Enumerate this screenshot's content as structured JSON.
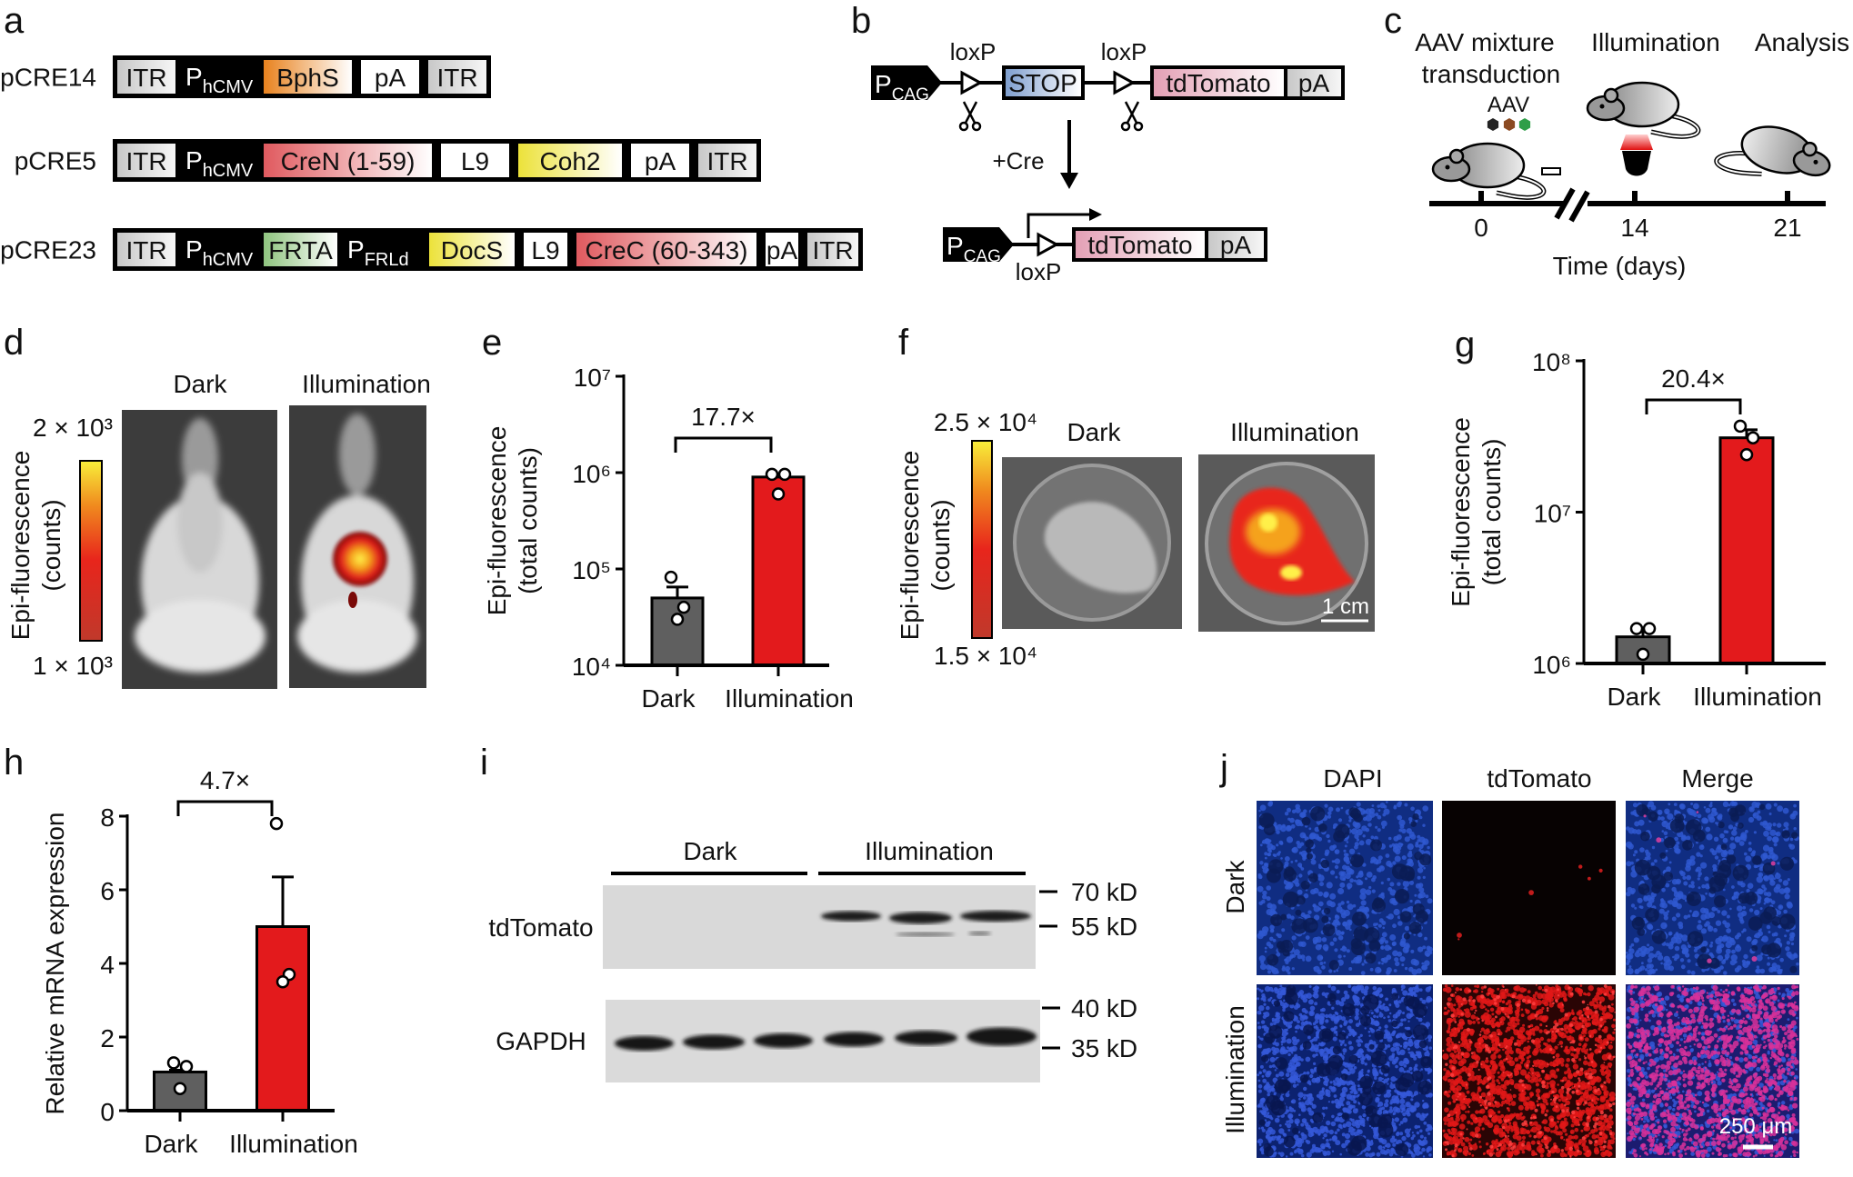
{
  "panel_a": {
    "label": "a",
    "constructs": [
      {
        "name": "pCRE14",
        "segments": [
          {
            "text": "ITR",
            "kind": "itr"
          },
          {
            "text": "P",
            "sub": "hCMV",
            "kind": "promoter"
          },
          {
            "text": "BphS",
            "kind": "gene",
            "color": "#e8821e"
          },
          {
            "text": "pA",
            "kind": "plain"
          },
          {
            "text": "ITR",
            "kind": "itr"
          }
        ]
      },
      {
        "name": "pCRE5",
        "segments": [
          {
            "text": "ITR",
            "kind": "itr"
          },
          {
            "text": "P",
            "sub": "hCMV",
            "kind": "promoter"
          },
          {
            "text": "CreN (1-59)",
            "kind": "gene",
            "color": "#e05a5f"
          },
          {
            "text": "L9",
            "kind": "plain"
          },
          {
            "text": "Coh2",
            "kind": "gene",
            "color": "#ece23a"
          },
          {
            "text": "pA",
            "kind": "plain"
          },
          {
            "text": "ITR",
            "kind": "itr"
          }
        ]
      },
      {
        "name": "pCRE23",
        "segments": [
          {
            "text": "ITR",
            "kind": "itr"
          },
          {
            "text": "P",
            "sub": "hCMV",
            "kind": "promoter"
          },
          {
            "text": "FRTA",
            "kind": "gene",
            "color": "#8fc47f"
          },
          {
            "text": "P",
            "sub": "FRLd",
            "kind": "promoter"
          },
          {
            "text": "DocS",
            "kind": "gene",
            "color": "#ece23a"
          },
          {
            "text": "L9",
            "kind": "plain"
          },
          {
            "text": "CreC (60-343)",
            "kind": "gene",
            "color": "#e05a5f"
          },
          {
            "text": "pA",
            "kind": "plain"
          },
          {
            "text": "ITR",
            "kind": "itr"
          }
        ]
      }
    ]
  },
  "panel_b": {
    "label": "b",
    "promoter": "P",
    "promoter_sub": "CAG",
    "loxp": "loxP",
    "stop": "STOP",
    "reporter": "tdTomato",
    "pa": "pA",
    "cre": "+Cre",
    "colors": {
      "stop": "#7f9fcf",
      "reporter": "#e3a0b5"
    }
  },
  "panel_c": {
    "label": "c",
    "steps": [
      "AAV mixture",
      "transduction",
      "Illumination",
      "Analysis"
    ],
    "aav": "AAV",
    "aav_colors": [
      "#222222",
      "#8b4a22",
      "#2f9e48"
    ],
    "timepoints": [
      "0",
      "14",
      "21"
    ],
    "xlabel": "Time (days)"
  },
  "panel_d": {
    "label": "d",
    "columns": [
      "Dark",
      "Illumination"
    ],
    "ylabel": [
      "Epi-fluorescence",
      "(counts)"
    ],
    "colorbar_max": "2 × 10³",
    "colorbar_min": "1 × 10³"
  },
  "panel_f": {
    "label": "f",
    "columns": [
      "Dark",
      "Illumination"
    ],
    "ylabel": [
      "Epi-fluorescence",
      "(counts)"
    ],
    "colorbar_max": "2.5 × 10⁴",
    "colorbar_min": "1.5 × 10⁴",
    "scale_bar": "1 cm"
  },
  "panel_i": {
    "label": "i",
    "groups": [
      "Dark",
      "Illumination"
    ],
    "rows": [
      "tdTomato",
      "GAPDH"
    ],
    "markers": [
      "70 kD",
      "55 kD",
      "40 kD",
      "35 kD"
    ]
  },
  "panel_j": {
    "label": "j",
    "columns": [
      "DAPI",
      "tdTomato",
      "Merge"
    ],
    "rows": [
      "Dark",
      "Illumination"
    ],
    "scale_bar": "250 μm"
  },
  "chart_data": [
    {
      "panel": "e",
      "type": "bar",
      "yscale": "log",
      "categories": [
        "Dark",
        "Illumination"
      ],
      "values": [
        50000,
        900000
      ],
      "sem_upper": [
        65000,
        960000
      ],
      "points": [
        [
          82000,
          40000,
          30000
        ],
        [
          960000,
          960000,
          600000
        ]
      ],
      "colors": [
        "#5f5f5f",
        "#e31a1c"
      ],
      "ylabel": [
        "Epi-fluorescence",
        "(total counts)"
      ],
      "ylim": [
        10000,
        10000000
      ],
      "yticks": [
        10000,
        100000,
        1000000,
        10000000
      ],
      "ytick_labels": [
        "10⁴",
        "10⁵",
        "10⁶",
        "10⁷"
      ],
      "annotation": "17.7×"
    },
    {
      "panel": "g",
      "type": "bar",
      "yscale": "log",
      "categories": [
        "Dark",
        "Illumination"
      ],
      "values": [
        1500000,
        31000000
      ],
      "sem_upper": [
        1700000,
        35000000
      ],
      "points": [
        [
          1700000,
          1700000,
          1150000
        ],
        [
          37000000,
          31000000,
          24000000
        ]
      ],
      "colors": [
        "#5f5f5f",
        "#e31a1c"
      ],
      "ylabel": [
        "Epi-fluorescence",
        "(total counts)"
      ],
      "ylim": [
        1000000,
        100000000
      ],
      "yticks": [
        1000000,
        10000000,
        100000000
      ],
      "ytick_labels": [
        "10⁶",
        "10⁷",
        "10⁸"
      ],
      "annotation": "20.4×"
    },
    {
      "panel": "h",
      "type": "bar",
      "yscale": "linear",
      "categories": [
        "Dark",
        "Illumination"
      ],
      "values": [
        1.05,
        5.0
      ],
      "sem_upper": [
        1.1,
        6.35
      ],
      "points": [
        [
          1.3,
          1.2,
          0.6
        ],
        [
          7.8,
          3.7,
          3.5
        ]
      ],
      "colors": [
        "#5f5f5f",
        "#e31a1c"
      ],
      "ylabel": [
        "Relative mRNA expression"
      ],
      "ylim": [
        0,
        8
      ],
      "yticks": [
        0,
        2,
        4,
        6,
        8
      ],
      "ytick_labels": [
        "0",
        "2",
        "4",
        "6",
        "8"
      ],
      "annotation": "4.7×"
    }
  ],
  "panel_labels": {
    "e": "e",
    "g": "g",
    "h": "h"
  }
}
